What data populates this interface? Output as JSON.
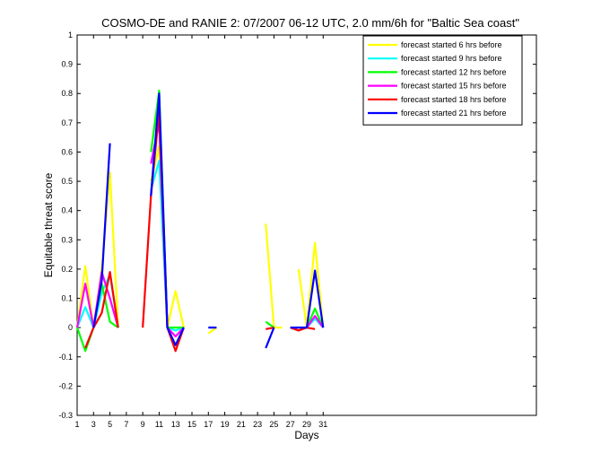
{
  "chart_data": {
    "type": "line",
    "title": "COSMO-DE and RANIE 2: 07/2007 06-12 UTC, 2.0 mm/6h for \"Baltic Sea coast\"",
    "xlabel": "Days",
    "ylabel": "Equitable threat score",
    "xlim": [
      1,
      57
    ],
    "ylim": [
      -0.3,
      1
    ],
    "xticks": [
      1,
      3,
      5,
      7,
      9,
      11,
      13,
      15,
      17,
      19,
      21,
      23,
      25,
      27,
      29,
      31
    ],
    "yticks": [
      -0.3,
      -0.2,
      -0.1,
      0,
      0.1,
      0.2,
      0.3,
      0.4,
      0.5,
      0.6,
      0.7,
      0.8,
      0.9,
      1
    ],
    "grid": false,
    "legend_position": "top-right",
    "series": [
      {
        "name": "forecast started 6 hrs before",
        "color": "#ffff00",
        "x": [
          1,
          2,
          3,
          4,
          5,
          6,
          null,
          10,
          11,
          12,
          13,
          14,
          null,
          17,
          18,
          null,
          24,
          25,
          26,
          null,
          28,
          29,
          30,
          31
        ],
        "y": [
          0.0,
          0.21,
          0.0,
          0.2,
          0.53,
          0.0,
          null,
          0.5,
          0.62,
          0.0,
          0.125,
          0.0,
          null,
          -0.02,
          0.0,
          null,
          0.355,
          0.0,
          0.0,
          null,
          0.2,
          0.0,
          0.29,
          0.0
        ]
      },
      {
        "name": "forecast started 9 hrs before",
        "color": "#00ffff",
        "x": [
          1,
          2,
          3,
          4,
          5,
          6,
          null,
          10,
          11,
          12,
          13,
          14,
          null,
          27,
          28,
          29,
          30,
          31
        ],
        "y": [
          0.0,
          0.07,
          0.0,
          0.12,
          0.18,
          0.0,
          null,
          0.47,
          0.57,
          0.0,
          -0.01,
          0.0,
          null,
          0.0,
          0.0,
          0.0,
          0.03,
          0.0
        ]
      },
      {
        "name": "forecast started 12 hrs before",
        "color": "#00ff00",
        "x": [
          1,
          2,
          3,
          4,
          5,
          6,
          null,
          10,
          11,
          12,
          13,
          14,
          null,
          24,
          25,
          null,
          27,
          28,
          29,
          30,
          31
        ],
        "y": [
          0.0,
          -0.08,
          0.0,
          0.15,
          0.02,
          0.0,
          null,
          0.6,
          0.81,
          0.0,
          0.0,
          0.0,
          null,
          0.02,
          0.0,
          null,
          0.0,
          0.0,
          0.0,
          0.065,
          0.0
        ]
      },
      {
        "name": "forecast started 15 hrs before",
        "color": "#ff00ff",
        "x": [
          1,
          2,
          3,
          4,
          5,
          6,
          null,
          10,
          11,
          12,
          13,
          14,
          null,
          27,
          28,
          29,
          30,
          31
        ],
        "y": [
          0.0,
          0.15,
          0.0,
          0.19,
          0.1,
          0.0,
          null,
          0.56,
          0.7,
          0.0,
          -0.03,
          0.0,
          null,
          0.0,
          0.0,
          0.0,
          0.04,
          0.0
        ]
      },
      {
        "name": "forecast started 18 hrs before",
        "color": "#ff0000",
        "x": [
          2,
          3,
          4,
          5,
          6,
          null,
          9,
          10,
          11,
          12,
          13,
          14,
          null,
          24,
          25,
          null,
          27,
          28,
          29,
          30
        ],
        "y": [
          -0.07,
          0.0,
          0.05,
          0.19,
          0.0,
          null,
          0.0,
          0.45,
          0.74,
          0.0,
          -0.08,
          0.0,
          null,
          -0.005,
          0.0,
          null,
          0.0,
          -0.01,
          0.0,
          -0.005
        ]
      },
      {
        "name": "forecast started 21 hrs before",
        "color": "#0000ff",
        "x": [
          3,
          4,
          5,
          null,
          10,
          11,
          12,
          13,
          14,
          null,
          17,
          18,
          null,
          24,
          25,
          null,
          27,
          28,
          29,
          30,
          31
        ],
        "y": [
          0.0,
          0.16,
          0.63,
          null,
          0.45,
          0.8,
          0.0,
          -0.06,
          0.0,
          null,
          0.0,
          0.0,
          null,
          -0.07,
          0.0,
          null,
          0.0,
          0.0,
          0.0,
          0.195,
          0.0
        ]
      }
    ]
  }
}
